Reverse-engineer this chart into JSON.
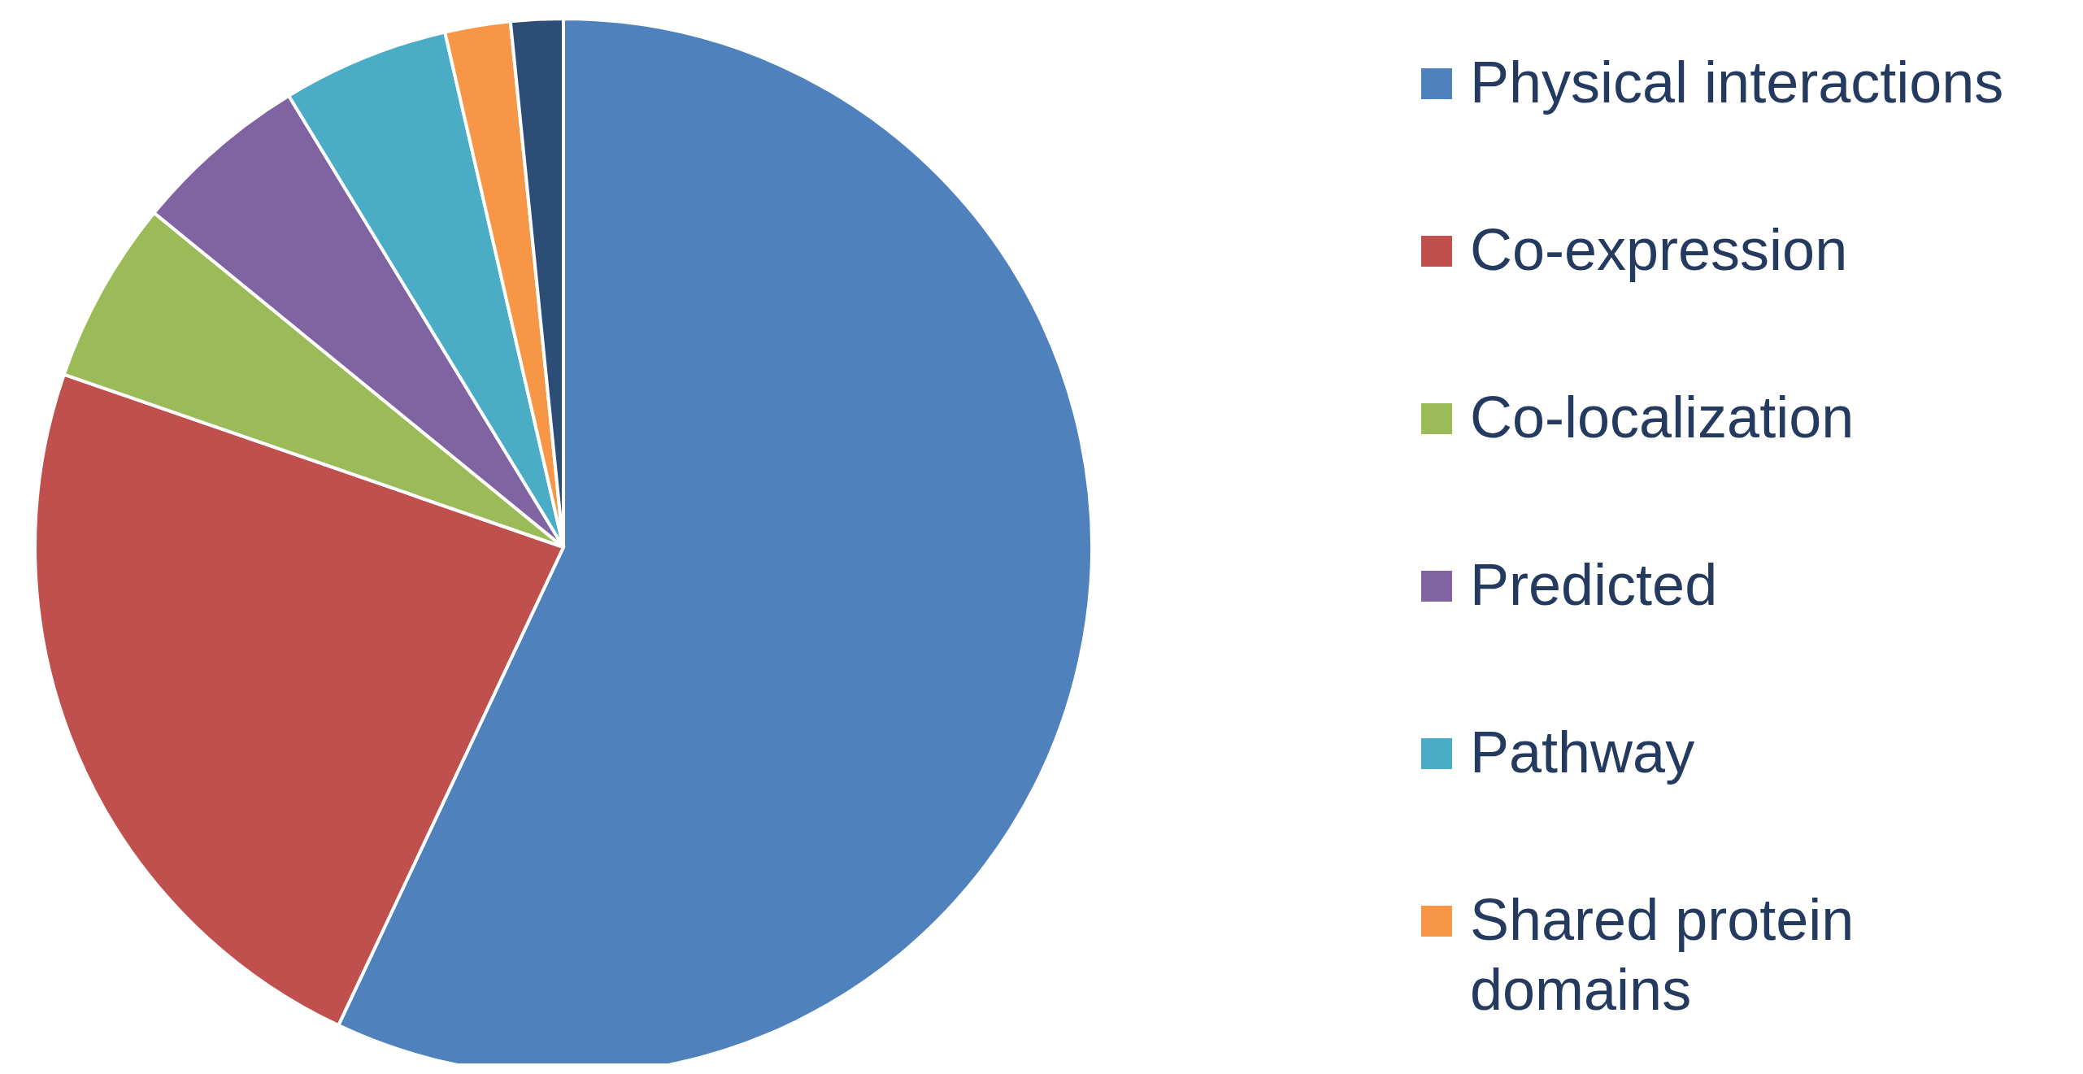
{
  "chart_data": {
    "type": "pie",
    "categories": [
      "Physical interactions",
      "Co-expression",
      "Co-localization",
      "Predicted",
      "Pathway",
      "Shared protein domains",
      null
    ],
    "values": [
      57.0,
      23.3,
      5.6,
      5.4,
      5.1,
      2.0,
      1.6
    ],
    "colors": [
      "#4f81bd",
      "#c0504d",
      "#9bbb59",
      "#8064a2",
      "#4bacc6",
      "#f79646",
      "#2c4d75"
    ],
    "legend": "right"
  }
}
